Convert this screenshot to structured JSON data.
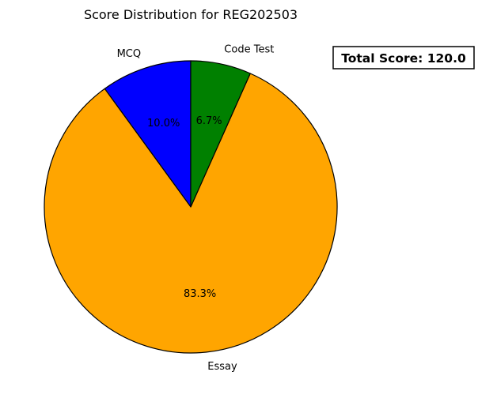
{
  "chart_data": {
    "type": "pie",
    "title": "Score Distribution for REG202503",
    "categories": [
      "MCQ",
      "Essay",
      "Code Test"
    ],
    "values": [
      12,
      100,
      8
    ],
    "percent_labels": [
      "10.0%",
      "83.3%",
      "6.7%"
    ],
    "colors": [
      "#0000ff",
      "#ffa500",
      "#008000"
    ],
    "start_angle_deg": 90,
    "direction": "counterclockwise",
    "annotation": "Total Score: 120.0",
    "annotation_placement": "top-right"
  }
}
